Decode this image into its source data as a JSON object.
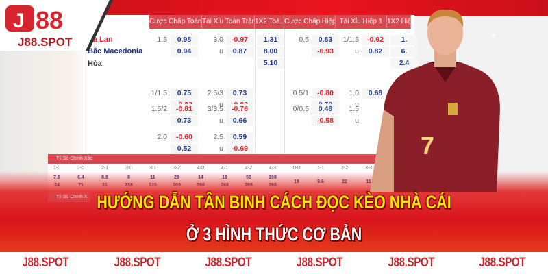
{
  "logo": {
    "brand": "J88",
    "domain": "J88.SPOT"
  },
  "headers": [
    "Cược Chấp Toàn ...",
    "Tài Xỉu Toàn Trận",
    "1X2 Toà...",
    "Cược Chấp Hiệp 1",
    "Tài Xỉu Hiệp 1",
    "1X2 Hiệ..."
  ],
  "teams": {
    "home": "Hà Lan",
    "away": "Bắc Macedonia",
    "draw": "Hòa"
  },
  "rows": [
    {
      "hcap": "1.5",
      "h1": "0.98",
      "h2": "0.94",
      "ou": "3.0",
      "o1": "-0.97",
      "ou_u": "u",
      "o2": "0.87",
      "x1": "1.31",
      "x2": "8.00",
      "x3": "5.10",
      "hh": "0.5",
      "hh1": "0.83",
      "hh2": "-0.93",
      "hou": "1/1.5",
      "ho1": "-0.92",
      "hou_u": "u",
      "ho2": "0.82",
      "hx1": "1.",
      "hx2": "6.",
      "hx3": "2.4"
    },
    {
      "hcap": "1/1.5",
      "h1": "0.75",
      "h2": "-0.83",
      "ou": "2.5/3",
      "o1": "0.73",
      "ou_u": "u",
      "o2": "-0.83",
      "hh": "0.5/1",
      "hh1": "-0.80",
      "hh2": "0.70",
      "hou": "1.0",
      "ho1": "0.68",
      "hou_u": "u"
    },
    {
      "hcap": "1.5/2",
      "h1": "-0.81",
      "h2": "0.73",
      "ou": "3/3.5",
      "o1": "-0.76",
      "ou_u": "u",
      "o2": "0.66",
      "hh": "0/0.5",
      "hh1": "0.48",
      "hh2": "-0.58",
      "hou": "1.5",
      "hou_u": "u"
    },
    {
      "hcap": "2.0",
      "h1": "-0.60",
      "h2": "0.52",
      "ou": "2.5",
      "o1": "0.59",
      "ou_u": "u",
      "o2": "-0.69"
    }
  ],
  "correct_score": {
    "title": "Tỷ Số Chính Xác",
    "title2": "Tỷ Số Chính X",
    "scores": [
      "1-0",
      "2-0",
      "2-1",
      "3-0",
      "3-1",
      "3-2",
      "4-0",
      "4-1",
      "4-2",
      "4-3",
      "0-0",
      "1-1",
      "2-2",
      "3-3"
    ],
    "home": [
      "7.6",
      "6.4",
      "8.8",
      "8",
      "11",
      "29",
      "14",
      "19",
      "50",
      "198",
      "18",
      "9.6",
      "22",
      "11"
    ],
    "away": [
      "24",
      "71",
      "31",
      "238",
      "120",
      "103",
      "268",
      "268",
      "268",
      "268"
    ]
  },
  "headline": {
    "line1": "HƯỚNG DẪN TÂN BINH CÁCH ĐỌC KÈO NHÀ CÁI",
    "line2": "Ở 3 HÌNH THỨC CƠ BẢN"
  },
  "footer": [
    "J88.SPOT",
    "J88.SPOT",
    "J88.SPOT",
    "J88.SPOT",
    "J88.SPOT",
    "J88.SPOT"
  ],
  "player": {
    "jersey_number": "7"
  },
  "colors": {
    "brand_red": "#d8131b",
    "headline_yellow": "#ffe600",
    "odds_red": "#e0202a",
    "odds_blue": "#1f3a8a",
    "header_red": "#d9474f"
  }
}
